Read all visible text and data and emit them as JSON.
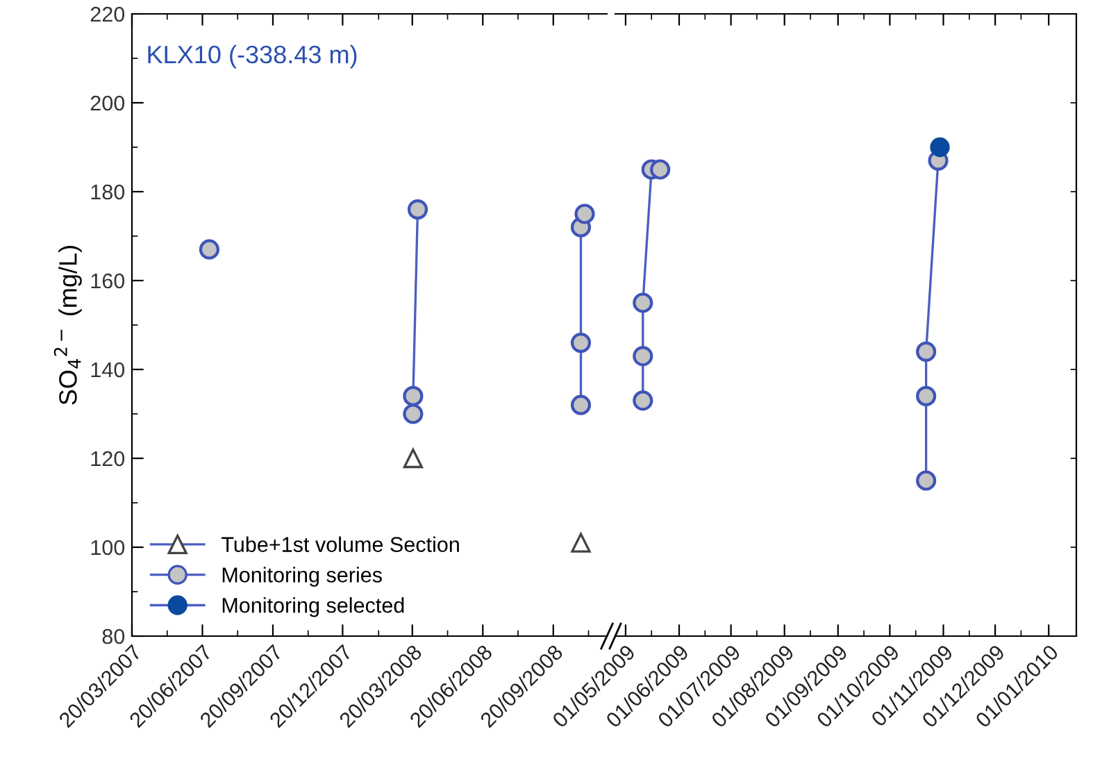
{
  "chart_data": [
    {
      "type": "line",
      "ylabel": "SO$_{4}$$^{2−}$ (mg/L)",
      "annotations": [
        "KLX10 (-338.43 m)"
      ],
      "xlim": [
        "2007-03-20",
        "2008-11-29"
      ],
      "ylim": [
        80,
        220
      ],
      "xticks": [
        {
          "value": "2007-03-20",
          "label": "20/03/2007"
        },
        {
          "value": "2007-06-20",
          "label": "20/06/2007"
        },
        {
          "value": "2007-09-20",
          "label": "20/09/2007"
        },
        {
          "value": "2007-12-20",
          "label": "20/12/2007"
        },
        {
          "value": "2008-03-20",
          "label": "20/03/2008"
        },
        {
          "value": "2008-06-20",
          "label": "20/06/2008"
        },
        {
          "value": "2008-09-20",
          "label": "20/09/2008"
        },
        {
          "value": "2008-11-05",
          "label": null
        },
        {
          "value": "2007-05-05",
          "label": null
        },
        {
          "value": "2007-08-05",
          "label": null
        },
        {
          "value": "2007-11-05",
          "label": null
        },
        {
          "value": "2008-02-05",
          "label": null
        },
        {
          "value": "2008-05-05",
          "label": null
        },
        {
          "value": "2008-08-05",
          "label": null
        }
      ],
      "yticks": [
        80,
        100,
        120,
        140,
        160,
        180,
        200,
        220,
        {
          "value": 90,
          "label": null
        },
        {
          "value": 110,
          "label": null
        },
        {
          "value": 130,
          "label": null
        },
        {
          "value": 150,
          "label": null
        },
        {
          "value": 170,
          "label": null
        },
        {
          "value": 190,
          "label": null
        },
        {
          "value": 210,
          "label": null
        }
      ],
      "legend": "bottom left",
      "grid": false,
      "series": [
        {
          "name": "Tube+1st volume Section",
          "type": "scatter",
          "marker": "triangle",
          "color": "#444444",
          "x": [
            "2008-03-21",
            "2008-10-26"
          ],
          "values": [
            120,
            101
          ]
        },
        {
          "name": "Monitoring series",
          "marker": "circle",
          "color": "#3f54b8",
          "x": [
            "2007-06-29",
            null,
            "2008-03-21",
            "2008-03-21",
            "2008-03-27",
            null,
            "2008-10-26",
            "2008-10-26",
            "2008-10-26",
            "2008-10-31"
          ],
          "values": [
            167,
            null,
            130,
            134,
            176,
            null,
            132,
            146,
            172,
            175
          ]
        }
      ]
    },
    {
      "type": "line",
      "tick_labels": "x",
      "xlim": [
        "2009-04-25",
        "2010-01-17"
      ],
      "ylim": [
        80,
        220
      ],
      "xticks": [
        {
          "value": "2009-05-01",
          "label": "01/05/2009"
        },
        {
          "value": "2009-06-01",
          "label": "01/06/2009"
        },
        {
          "value": "2009-07-01",
          "label": "01/07/2009"
        },
        {
          "value": "2009-08-01",
          "label": "01/08/2009"
        },
        {
          "value": "2009-09-01",
          "label": "01/09/2009"
        },
        {
          "value": "2009-10-01",
          "label": "01/10/2009"
        },
        {
          "value": "2009-11-01",
          "label": "01/11/2009"
        },
        {
          "value": "2009-12-01",
          "label": "01/12/2009"
        },
        {
          "value": "2010-01-01",
          "label": "01/01/2010"
        },
        {
          "value": "2009-05-16",
          "label": null
        },
        {
          "value": "2009-06-16",
          "label": null
        },
        {
          "value": "2009-07-16",
          "label": null
        },
        {
          "value": "2009-08-16",
          "label": null
        },
        {
          "value": "2009-09-16",
          "label": null
        },
        {
          "value": "2009-10-16",
          "label": null
        },
        {
          "value": "2009-11-16",
          "label": null
        },
        {
          "value": "2009-12-16",
          "label": null
        }
      ],
      "yticks": [
        {
          "value": 80,
          "label": null
        },
        {
          "value": 100,
          "label": null
        },
        {
          "value": 120,
          "label": null
        },
        {
          "value": 140,
          "label": null
        },
        {
          "value": 160,
          "label": null
        },
        {
          "value": 180,
          "label": null
        },
        {
          "value": 200,
          "label": null
        },
        {
          "value": 220,
          "label": null
        }
      ],
      "grid": false,
      "series": [
        {
          "marker": "circle",
          "color": "#3f54b8",
          "x": [
            "2009-05-11",
            "2009-05-11",
            "2009-05-11",
            "2009-05-16",
            "2009-05-21",
            null,
            "2009-10-22",
            "2009-10-22",
            "2009-10-22",
            "2009-10-29"
          ],
          "values": [
            133,
            143,
            155,
            185,
            185,
            null,
            115,
            134,
            144,
            187
          ]
        },
        {
          "name": "Monitoring selected",
          "type": "scatter",
          "marker": "circle",
          "color": "#0a4a9e",
          "x": [
            "2009-10-30"
          ],
          "values": [
            190
          ]
        }
      ]
    }
  ]
}
